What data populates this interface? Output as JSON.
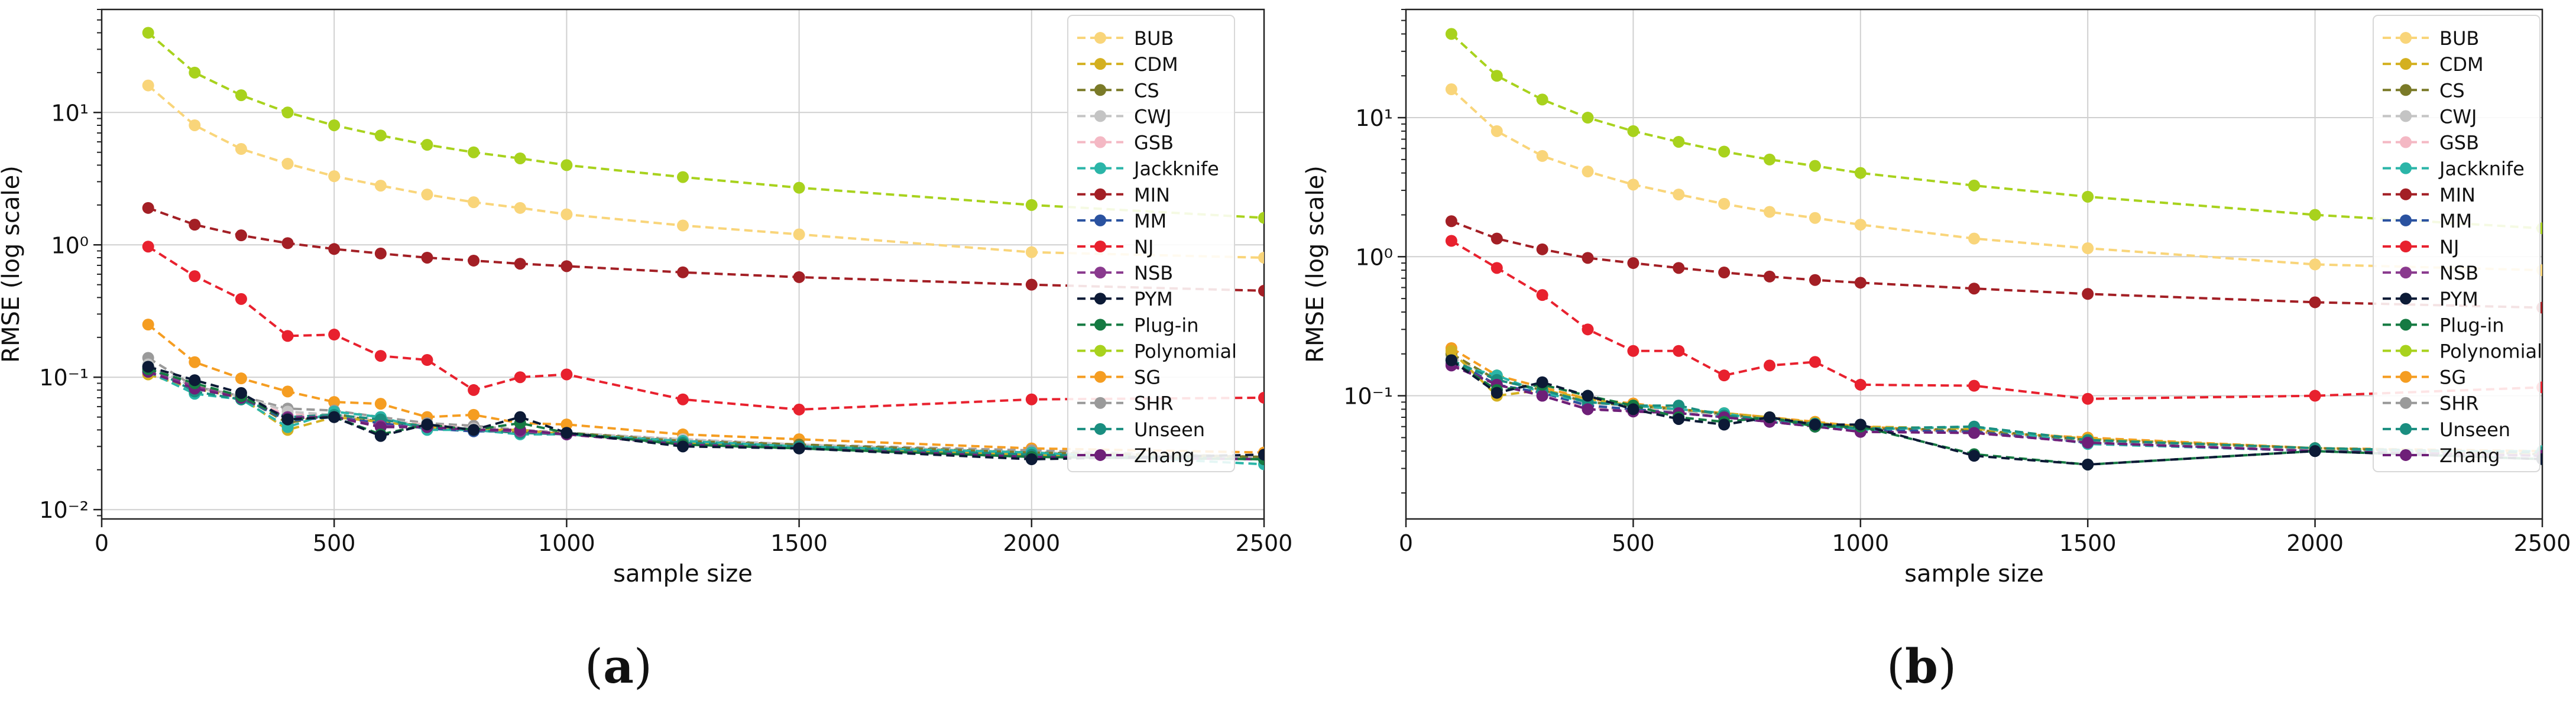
{
  "figure": {
    "captions": [
      "(a)",
      "(b)"
    ]
  },
  "legend_order": [
    "BUB",
    "CDM",
    "CS",
    "CWJ",
    "GSB",
    "Jackknife",
    "MIN",
    "MM",
    "NJ",
    "NSB",
    "PYM",
    "Plug-in",
    "Polynomial",
    "SG",
    "SHR",
    "Unseen",
    "Zhang"
  ],
  "series_colors": {
    "BUB": "#f9d57a",
    "CDM": "#d4b020",
    "CS": "#7a7a28",
    "CWJ": "#c4c4c4",
    "GSB": "#f4b8c4",
    "Jackknife": "#2bb5a8",
    "MIN": "#a31f25",
    "MM": "#2a52a0",
    "NJ": "#e8212e",
    "NSB": "#8a3a8e",
    "PYM": "#0c1a36",
    "Plug-in": "#157a42",
    "Polynomial": "#a8d21d",
    "SG": "#f59d21",
    "SHR": "#9a9a9a",
    "Unseen": "#1a8e80",
    "Zhang": "#6e1f78"
  },
  "chart_data": [
    {
      "type": "line",
      "panel": "(a)",
      "title": "",
      "xlabel": "sample size",
      "ylabel": "RMSE (log scale)",
      "xlim": [
        0,
        2500
      ],
      "ylim": [
        0.0085,
        60
      ],
      "yscale": "log",
      "xticks": [
        0,
        500,
        1000,
        1500,
        2000,
        2500
      ],
      "yticks": [
        0.01,
        0.1,
        1,
        10
      ],
      "ytick_labels": [
        "10⁻²",
        "10⁻¹",
        "10⁰",
        "10¹"
      ],
      "grid": true,
      "legend_position": "top-right",
      "x": [
        100,
        200,
        300,
        400,
        500,
        600,
        700,
        800,
        900,
        1000,
        1250,
        1500,
        2000,
        2500
      ],
      "series": [
        {
          "name": "Polynomial",
          "values": [
            40,
            20,
            13.5,
            10,
            8,
            6.7,
            5.7,
            5.0,
            4.5,
            4.0,
            3.25,
            2.7,
            2.0,
            1.6
          ]
        },
        {
          "name": "BUB",
          "values": [
            16,
            8,
            5.3,
            4.1,
            3.3,
            2.8,
            2.4,
            2.1,
            1.9,
            1.7,
            1.4,
            1.2,
            0.88,
            0.8
          ]
        },
        {
          "name": "MIN",
          "values": [
            1.9,
            1.42,
            1.18,
            1.03,
            0.93,
            0.86,
            0.8,
            0.76,
            0.72,
            0.69,
            0.62,
            0.57,
            0.5,
            0.45
          ]
        },
        {
          "name": "NJ",
          "values": [
            0.97,
            0.58,
            0.39,
            0.205,
            0.21,
            0.145,
            0.135,
            0.08,
            0.1,
            0.105,
            0.068,
            0.057,
            0.068,
            0.07
          ]
        },
        {
          "name": "SG",
          "values": [
            0.25,
            0.13,
            0.098,
            0.078,
            0.065,
            0.063,
            0.05,
            0.052,
            0.045,
            0.044,
            0.037,
            0.034,
            0.029,
            0.027
          ]
        },
        {
          "name": "SHR",
          "values": [
            0.14,
            0.085,
            0.072,
            0.058,
            0.056,
            0.05,
            0.045,
            0.043,
            0.04,
            0.038,
            0.034,
            0.031,
            0.028,
            0.025
          ]
        },
        {
          "name": "GSB",
          "values": [
            0.12,
            0.085,
            0.07,
            0.052,
            0.052,
            0.047,
            0.044,
            0.041,
            0.039,
            0.038,
            0.034,
            0.031,
            0.027,
            0.025
          ]
        },
        {
          "name": "CWJ",
          "values": [
            0.125,
            0.083,
            0.072,
            0.055,
            0.052,
            0.048,
            0.043,
            0.041,
            0.039,
            0.038,
            0.034,
            0.031,
            0.027,
            0.025
          ]
        },
        {
          "name": "CS",
          "values": [
            0.115,
            0.085,
            0.072,
            0.045,
            0.053,
            0.046,
            0.043,
            0.04,
            0.038,
            0.038,
            0.033,
            0.031,
            0.027,
            0.025
          ]
        },
        {
          "name": "CDM",
          "values": [
            0.105,
            0.082,
            0.07,
            0.04,
            0.05,
            0.046,
            0.042,
            0.04,
            0.04,
            0.037,
            0.032,
            0.03,
            0.026,
            0.024
          ]
        },
        {
          "name": "MM",
          "values": [
            0.11,
            0.082,
            0.07,
            0.047,
            0.05,
            0.045,
            0.041,
            0.039,
            0.039,
            0.037,
            0.032,
            0.03,
            0.026,
            0.024
          ]
        },
        {
          "name": "Jackknife",
          "values": [
            0.11,
            0.075,
            0.068,
            0.042,
            0.055,
            0.05,
            0.04,
            0.04,
            0.037,
            0.037,
            0.033,
            0.03,
            0.027,
            0.022
          ]
        },
        {
          "name": "Unseen",
          "values": [
            0.12,
            0.078,
            0.068,
            0.05,
            0.052,
            0.048,
            0.042,
            0.04,
            0.038,
            0.037,
            0.032,
            0.03,
            0.026,
            0.024
          ]
        },
        {
          "name": "NSB",
          "values": [
            0.115,
            0.085,
            0.07,
            0.05,
            0.05,
            0.043,
            0.042,
            0.04,
            0.039,
            0.037,
            0.031,
            0.029,
            0.025,
            0.024
          ]
        },
        {
          "name": "Zhang",
          "values": [
            0.11,
            0.082,
            0.07,
            0.049,
            0.05,
            0.042,
            0.042,
            0.04,
            0.04,
            0.037,
            0.031,
            0.029,
            0.025,
            0.024
          ]
        },
        {
          "name": "Plug-in",
          "values": [
            0.115,
            0.09,
            0.072,
            0.048,
            0.05,
            0.037,
            0.044,
            0.04,
            0.045,
            0.038,
            0.031,
            0.029,
            0.025,
            0.024
          ]
        },
        {
          "name": "PYM",
          "values": [
            0.12,
            0.095,
            0.076,
            0.048,
            0.05,
            0.036,
            0.044,
            0.04,
            0.05,
            0.038,
            0.03,
            0.029,
            0.024,
            0.026
          ]
        }
      ]
    },
    {
      "type": "line",
      "panel": "(b)",
      "title": "",
      "xlabel": "sample size",
      "ylabel": "RMSE (log scale)",
      "xlim": [
        0,
        2500
      ],
      "ylim": [
        0.013,
        60
      ],
      "yscale": "log",
      "xticks": [
        0,
        500,
        1000,
        1500,
        2000,
        2500
      ],
      "yticks": [
        0.1,
        1,
        10
      ],
      "ytick_labels": [
        "10⁻¹",
        "10⁰",
        "10¹"
      ],
      "grid": true,
      "legend_position": "top-right",
      "x": [
        100,
        200,
        300,
        400,
        500,
        600,
        700,
        800,
        900,
        1000,
        1250,
        1500,
        2000,
        2500
      ],
      "series": [
        {
          "name": "Polynomial",
          "values": [
            40,
            20,
            13.5,
            10,
            8,
            6.7,
            5.7,
            5.0,
            4.5,
            4.0,
            3.25,
            2.7,
            2.0,
            1.6
          ]
        },
        {
          "name": "BUB",
          "values": [
            16,
            8,
            5.3,
            4.1,
            3.3,
            2.8,
            2.4,
            2.1,
            1.9,
            1.7,
            1.35,
            1.15,
            0.88,
            0.8
          ]
        },
        {
          "name": "MIN",
          "values": [
            1.8,
            1.35,
            1.13,
            0.98,
            0.9,
            0.83,
            0.77,
            0.72,
            0.68,
            0.65,
            0.59,
            0.54,
            0.47,
            0.43
          ]
        },
        {
          "name": "NJ",
          "values": [
            1.3,
            0.83,
            0.53,
            0.3,
            0.21,
            0.21,
            0.14,
            0.165,
            0.175,
            0.12,
            0.118,
            0.095,
            0.1,
            0.115
          ]
        },
        {
          "name": "SG",
          "values": [
            0.22,
            0.14,
            0.115,
            0.095,
            0.088,
            0.08,
            0.075,
            0.07,
            0.065,
            0.06,
            0.055,
            0.05,
            0.042,
            0.04
          ]
        },
        {
          "name": "SHR",
          "values": [
            0.2,
            0.13,
            0.11,
            0.09,
            0.085,
            0.078,
            0.073,
            0.067,
            0.062,
            0.058,
            0.055,
            0.047,
            0.042,
            0.038
          ]
        },
        {
          "name": "GSB",
          "values": [
            0.18,
            0.12,
            0.105,
            0.082,
            0.08,
            0.077,
            0.071,
            0.065,
            0.062,
            0.057,
            0.055,
            0.047,
            0.041,
            0.038
          ]
        },
        {
          "name": "CWJ",
          "values": [
            0.19,
            0.13,
            0.11,
            0.088,
            0.085,
            0.078,
            0.072,
            0.066,
            0.062,
            0.058,
            0.055,
            0.047,
            0.041,
            0.038
          ]
        },
        {
          "name": "CS",
          "values": [
            0.2,
            0.13,
            0.11,
            0.09,
            0.085,
            0.08,
            0.074,
            0.068,
            0.063,
            0.058,
            0.057,
            0.048,
            0.042,
            0.038
          ]
        },
        {
          "name": "CDM",
          "values": [
            0.21,
            0.1,
            0.11,
            0.095,
            0.085,
            0.08,
            0.075,
            0.07,
            0.064,
            0.06,
            0.058,
            0.049,
            0.042,
            0.038
          ]
        },
        {
          "name": "MM",
          "values": [
            0.18,
            0.12,
            0.105,
            0.085,
            0.08,
            0.075,
            0.07,
            0.065,
            0.062,
            0.057,
            0.055,
            0.046,
            0.04,
            0.037
          ]
        },
        {
          "name": "Jackknife",
          "values": [
            0.17,
            0.14,
            0.105,
            0.09,
            0.085,
            0.08,
            0.075,
            0.065,
            0.06,
            0.057,
            0.06,
            0.045,
            0.04,
            0.04
          ]
        },
        {
          "name": "Unseen",
          "values": [
            0.18,
            0.13,
            0.11,
            0.09,
            0.085,
            0.085,
            0.072,
            0.068,
            0.063,
            0.058,
            0.06,
            0.048,
            0.042,
            0.039
          ]
        },
        {
          "name": "NSB",
          "values": [
            0.17,
            0.12,
            0.1,
            0.08,
            0.078,
            0.075,
            0.07,
            0.065,
            0.06,
            0.055,
            0.054,
            0.046,
            0.04,
            0.037
          ]
        },
        {
          "name": "Zhang",
          "values": [
            0.165,
            0.12,
            0.1,
            0.08,
            0.077,
            0.075,
            0.07,
            0.065,
            0.06,
            0.055,
            0.054,
            0.046,
            0.04,
            0.037
          ]
        },
        {
          "name": "Plug-in",
          "values": [
            0.18,
            0.11,
            0.12,
            0.1,
            0.085,
            0.07,
            0.065,
            0.07,
            0.06,
            0.06,
            0.038,
            0.032,
            0.04,
            0.035
          ]
        },
        {
          "name": "PYM",
          "values": [
            0.18,
            0.105,
            0.125,
            0.1,
            0.08,
            0.068,
            0.062,
            0.07,
            0.062,
            0.062,
            0.037,
            0.032,
            0.04,
            0.035
          ]
        }
      ]
    }
  ]
}
